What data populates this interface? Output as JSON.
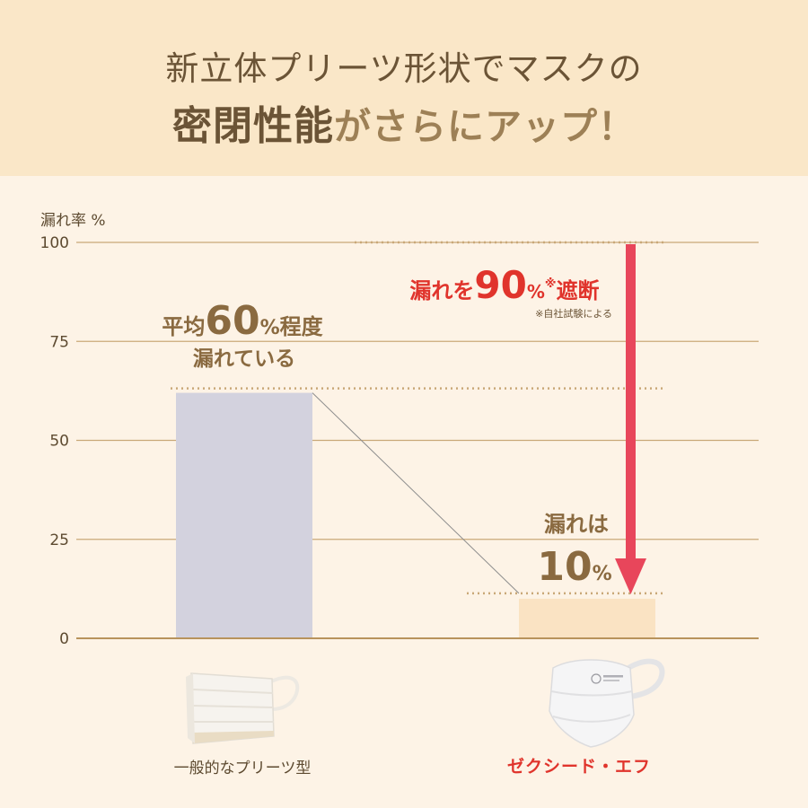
{
  "header": {
    "line1": "新立体プリーツ形状でマスクの",
    "line2_emphasis": "密閉性能",
    "line2_rest": "がさらにアップ！"
  },
  "colors": {
    "bar_generic": "#d3d2de",
    "bar_zexeed": "#fae3c3",
    "arrow": "#e8465b",
    "gridline": "#c9a878",
    "baseline": "#b8935c",
    "header_bg": "#fae7c8",
    "page_bg": "#fdf3e6",
    "red_text": "#e0342c",
    "brown_text": "#8a6a40"
  },
  "chart_data": {
    "type": "bar",
    "ylabel": "漏れ率 %",
    "ylim": [
      0,
      100
    ],
    "yticks": [
      "100",
      "75",
      "50",
      "25",
      "0"
    ],
    "categories": [
      "一般的なプリーツ型",
      "ゼクシード・エフ"
    ],
    "values": [
      62,
      10
    ],
    "grid": true,
    "annotations": {
      "generic": {
        "prefix": "平均",
        "big": "60",
        "unit": "%",
        "suffix": "程度",
        "line2": "漏れている"
      },
      "arrow": {
        "prefix": "漏れを",
        "big": "90",
        "unit": "%",
        "mark": "※",
        "suffix": "遮断",
        "note": "※自社試験による"
      },
      "zexeed": {
        "line1": "漏れは",
        "big": "10",
        "unit": "%"
      }
    }
  }
}
